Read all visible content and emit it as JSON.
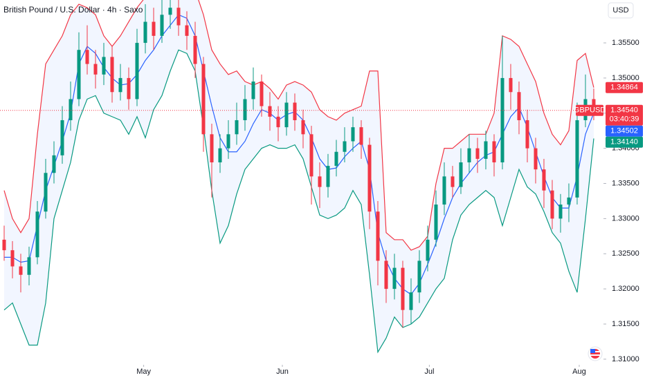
{
  "chart_data": {
    "type": "candlestick",
    "title": "British Pound / U.S. Dollar · 4h · Saxo",
    "currency": "USD",
    "xlim": [
      -0.5,
      72.17
    ],
    "xticks": [
      {
        "value": 16.8,
        "label": "May"
      },
      {
        "value": 33.5,
        "label": "Jun"
      },
      {
        "value": 51.2,
        "label": "Jul"
      },
      {
        "value": 69.25,
        "label": "Aug"
      }
    ],
    "ylim": [
      1.3092,
      1.3611
    ],
    "yticks": [
      {
        "value": 1.31,
        "label": "1.31000"
      },
      {
        "value": 1.315,
        "label": "1.31500"
      },
      {
        "value": 1.32,
        "label": "1.32000"
      },
      {
        "value": 1.325,
        "label": "1.32500"
      },
      {
        "value": 1.33,
        "label": "1.33000"
      },
      {
        "value": 1.335,
        "label": "1.33500"
      },
      {
        "value": 1.34,
        "label": "1.34000"
      },
      {
        "value": 1.345,
        "label": "1.34500"
      },
      {
        "value": 1.35,
        "label": "1.35000"
      },
      {
        "value": 1.355,
        "label": "1.35500"
      }
    ],
    "up_color": "#089981",
    "down_color": "#f23645",
    "open": [
      1.327,
      1.3255,
      1.3232,
      1.322,
      1.3245,
      1.331,
      1.3365,
      1.339,
      1.344,
      1.347,
      1.354,
      1.352,
      1.3505,
      1.353,
      1.348,
      1.35,
      1.347,
      1.355,
      1.358,
      1.356,
      1.359,
      1.36,
      1.3575,
      1.356,
      1.352,
      1.342,
      1.338,
      1.34,
      1.342,
      1.344,
      1.347,
      1.3495,
      1.346,
      1.3445,
      1.343,
      1.3465,
      1.344,
      1.342,
      1.336,
      1.3345,
      1.3375,
      1.3395,
      1.341,
      1.343,
      1.3405,
      1.331,
      1.324,
      1.32,
      1.323,
      1.317,
      1.3195,
      1.324,
      1.327,
      1.332,
      1.336,
      1.3345,
      1.338,
      1.34,
      1.3385,
      1.341,
      1.338,
      1.35,
      1.348,
      1.344,
      1.34,
      1.337,
      1.334,
      1.33,
      1.332,
      1.333,
      1.344,
      1.347
    ],
    "high": [
      1.329,
      1.3268,
      1.325,
      1.326,
      1.3325,
      1.3385,
      1.341,
      1.346,
      1.3495,
      1.3565,
      1.3575,
      1.354,
      1.355,
      1.3545,
      1.352,
      1.3515,
      1.357,
      1.3605,
      1.36,
      1.3615,
      1.3625,
      1.362,
      1.3595,
      1.358,
      1.353,
      1.3435,
      1.342,
      1.344,
      1.3465,
      1.349,
      1.3515,
      1.3505,
      1.348,
      1.346,
      1.348,
      1.3478,
      1.3455,
      1.3432,
      1.338,
      1.3392,
      1.3412,
      1.343,
      1.3445,
      1.344,
      1.3415,
      1.3325,
      1.3255,
      1.325,
      1.324,
      1.3215,
      1.3255,
      1.329,
      1.334,
      1.338,
      1.3375,
      1.34,
      1.342,
      1.3415,
      1.3425,
      1.342,
      1.356,
      1.352,
      1.3495,
      1.3455,
      1.3415,
      1.3385,
      1.3355,
      1.3335,
      1.335,
      1.3465,
      1.3505,
      1.3485
    ],
    "low": [
      1.324,
      1.3215,
      1.3195,
      1.3205,
      1.3235,
      1.33,
      1.335,
      1.3378,
      1.3425,
      1.346,
      1.3505,
      1.3485,
      1.349,
      1.3465,
      1.3468,
      1.3455,
      1.346,
      1.3535,
      1.354,
      1.355,
      1.357,
      1.356,
      1.354,
      1.35,
      1.3395,
      1.333,
      1.3365,
      1.3385,
      1.3405,
      1.3425,
      1.3455,
      1.3445,
      1.3425,
      1.341,
      1.3418,
      1.3425,
      1.34,
      1.332,
      1.3315,
      1.333,
      1.336,
      1.338,
      1.3395,
      1.3385,
      1.3285,
      1.3205,
      1.318,
      1.3185,
      1.3145,
      1.315,
      1.318,
      1.3225,
      1.326,
      1.3305,
      1.333,
      1.3335,
      1.3365,
      1.3365,
      1.337,
      1.336,
      1.337,
      1.3455,
      1.342,
      1.338,
      1.335,
      1.3315,
      1.3285,
      1.328,
      1.3295,
      1.332,
      1.343,
      1.344
    ],
    "close": [
      1.3255,
      1.3232,
      1.322,
      1.3245,
      1.331,
      1.3365,
      1.339,
      1.344,
      1.347,
      1.354,
      1.352,
      1.3505,
      1.353,
      1.348,
      1.35,
      1.347,
      1.355,
      1.358,
      1.356,
      1.359,
      1.36,
      1.3575,
      1.356,
      1.352,
      1.342,
      1.338,
      1.34,
      1.342,
      1.344,
      1.347,
      1.3495,
      1.346,
      1.3445,
      1.343,
      1.3465,
      1.344,
      1.342,
      1.336,
      1.3345,
      1.3375,
      1.3395,
      1.341,
      1.343,
      1.3405,
      1.331,
      1.324,
      1.32,
      1.323,
      1.317,
      1.3195,
      1.324,
      1.327,
      1.332,
      1.336,
      1.3345,
      1.338,
      1.34,
      1.3385,
      1.341,
      1.338,
      1.35,
      1.348,
      1.344,
      1.34,
      1.337,
      1.334,
      1.33,
      1.332,
      1.333,
      1.344,
      1.347,
      1.3454
    ],
    "bands": {
      "fill_color": "#2962ff",
      "upper_color": "#f23645",
      "basis_color": "#2962ff",
      "lower_color": "#089981",
      "upper": [
        1.334,
        1.33,
        1.328,
        1.33,
        1.342,
        1.352,
        1.354,
        1.356,
        1.359,
        1.3605,
        1.36,
        1.359,
        1.356,
        1.3545,
        1.356,
        1.358,
        1.36,
        1.3615,
        1.3625,
        1.3635,
        1.364,
        1.364,
        1.3635,
        1.3625,
        1.359,
        1.354,
        1.352,
        1.3505,
        1.351,
        1.3495,
        1.349,
        1.3495,
        1.3485,
        1.347,
        1.349,
        1.3495,
        1.349,
        1.348,
        1.3455,
        1.3445,
        1.344,
        1.345,
        1.3455,
        1.346,
        1.351,
        1.351,
        1.328,
        1.327,
        1.327,
        1.3255,
        1.326,
        1.3275,
        1.335,
        1.34,
        1.34,
        1.341,
        1.342,
        1.342,
        1.342,
        1.345,
        1.356,
        1.3555,
        1.3545,
        1.352,
        1.3495,
        1.345,
        1.342,
        1.3405,
        1.3425,
        1.3525,
        1.3535,
        1.34864
      ],
      "basis": [
        1.3245,
        1.3245,
        1.3238,
        1.324,
        1.329,
        1.334,
        1.3375,
        1.341,
        1.345,
        1.352,
        1.3545,
        1.3535,
        1.3515,
        1.35,
        1.349,
        1.3492,
        1.3505,
        1.3525,
        1.354,
        1.356,
        1.3575,
        1.359,
        1.3585,
        1.356,
        1.351,
        1.346,
        1.3415,
        1.3395,
        1.3395,
        1.341,
        1.3435,
        1.3455,
        1.345,
        1.344,
        1.3448,
        1.3452,
        1.344,
        1.3415,
        1.3385,
        1.337,
        1.3372,
        1.3388,
        1.34,
        1.341,
        1.337,
        1.328,
        1.324,
        1.3215,
        1.32,
        1.3192,
        1.3208,
        1.3235,
        1.3265,
        1.33,
        1.333,
        1.335,
        1.3365,
        1.338,
        1.339,
        1.3395,
        1.342,
        1.3445,
        1.3458,
        1.343,
        1.3395,
        1.336,
        1.333,
        1.3315,
        1.3315,
        1.336,
        1.342,
        1.34502
      ],
      "lower": [
        1.317,
        1.318,
        1.315,
        1.312,
        1.312,
        1.318,
        1.33,
        1.334,
        1.338,
        1.344,
        1.347,
        1.3475,
        1.345,
        1.3445,
        1.344,
        1.342,
        1.3445,
        1.3415,
        1.3455,
        1.3475,
        1.351,
        1.354,
        1.3535,
        1.351,
        1.343,
        1.334,
        1.3265,
        1.329,
        1.3335,
        1.337,
        1.3385,
        1.34,
        1.3405,
        1.34,
        1.34,
        1.3405,
        1.3385,
        1.3345,
        1.3305,
        1.33,
        1.3305,
        1.3315,
        1.334,
        1.332,
        1.322,
        1.311,
        1.313,
        1.316,
        1.3145,
        1.315,
        1.316,
        1.318,
        1.32,
        1.3215,
        1.327,
        1.3305,
        1.332,
        1.333,
        1.334,
        1.333,
        1.329,
        1.333,
        1.337,
        1.3345,
        1.3335,
        1.331,
        1.328,
        1.3265,
        1.3225,
        1.3195,
        1.33,
        1.3414
      ]
    },
    "last_price": {
      "value": 1.3454,
      "label": "1.34540",
      "symbol": "GBPUSD",
      "countdown": "03:40:39",
      "color": "#f23645"
    },
    "tags": [
      {
        "value": 1.34864,
        "label": "1.34864",
        "color": "#f23645"
      },
      {
        "value": 1.34502,
        "label": "1.34502",
        "color": "#2962ff"
      },
      {
        "value": 1.3414,
        "label": "1.34140",
        "color": "#089981"
      }
    ]
  }
}
